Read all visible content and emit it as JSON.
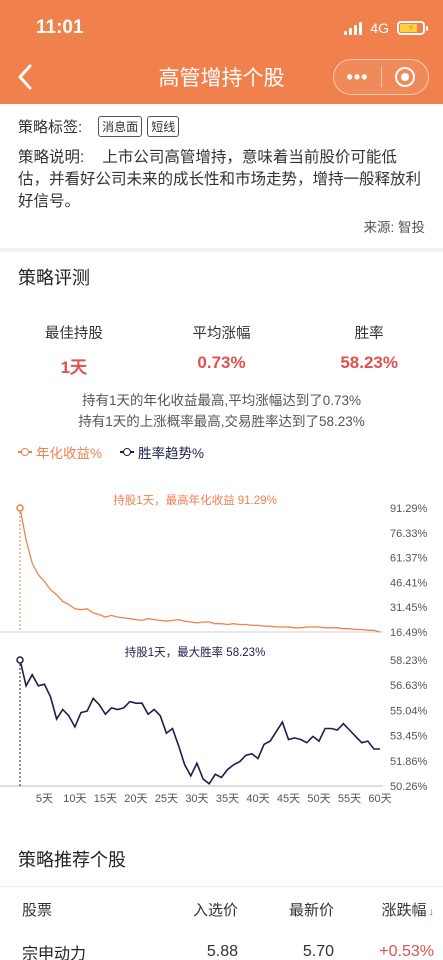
{
  "status": {
    "time": "11:01",
    "network": "4G"
  },
  "nav": {
    "back_icon": "chevron-left-icon",
    "title": "高管增持个股"
  },
  "strategy": {
    "tag_label": "策略标签:",
    "tags": [
      "消息面",
      "短线"
    ],
    "desc_label": "策略说明:",
    "description": "上市公司高管增持，意味着当前股价可能低估，并看好公司未来的成长性和市场走势，增持一般释放利好信号。",
    "source": "来源: 智投"
  },
  "evaluation": {
    "heading": "策略评测",
    "stats": [
      {
        "name": "最佳持股",
        "value": "1天"
      },
      {
        "name": "平均涨幅",
        "value": "0.73%"
      },
      {
        "name": "胜率",
        "value": "58.23%"
      }
    ],
    "summary_line1": "持有1天的年化收益最高,平均涨幅达到了0.73%",
    "summary_line2": "持有1天的上涨概率最高,交易胜率达到了58.23%",
    "legend": [
      {
        "label": "年化收益%",
        "color": "#f0814d"
      },
      {
        "label": "胜率趋势%",
        "color": "#1c1e4f"
      }
    ]
  },
  "chart_data": [
    {
      "type": "line",
      "title": "持股1天，最高年化收益 91.29%",
      "series": [
        {
          "name": "年化收益%",
          "color": "#f0814d"
        }
      ],
      "x": [
        1,
        2,
        3,
        4,
        5,
        6,
        7,
        8,
        9,
        10,
        11,
        12,
        13,
        14,
        15,
        16,
        17,
        18,
        19,
        20,
        21,
        22,
        23,
        24,
        25,
        26,
        27,
        28,
        29,
        30,
        31,
        32,
        33,
        34,
        35,
        36,
        37,
        38,
        39,
        40,
        41,
        42,
        43,
        44,
        45,
        46,
        47,
        48,
        49,
        50,
        51,
        52,
        53,
        54,
        55,
        56,
        57,
        58,
        59,
        60
      ],
      "y": [
        91.29,
        72,
        58,
        51,
        47,
        42,
        39,
        35,
        33,
        30.5,
        30,
        30.5,
        28,
        27,
        25.5,
        26.5,
        25.5,
        25,
        24.5,
        24,
        23.5,
        24.5,
        24,
        23.5,
        23,
        23.5,
        24,
        23,
        22.5,
        22,
        22.5,
        22.5,
        21.5,
        21.5,
        21,
        21.5,
        21,
        21,
        20.5,
        20.5,
        20,
        20,
        19.5,
        19.5,
        19.5,
        19,
        19,
        19.5,
        19.5,
        19.5,
        19,
        19,
        19,
        18.5,
        18.5,
        18,
        18,
        17.5,
        17.5,
        16.5
      ],
      "yticks": [
        "91.29%",
        "76.33%",
        "61.37%",
        "46.41%",
        "31.45%",
        "16.49%"
      ],
      "ylim": [
        16.49,
        91.29
      ]
    },
    {
      "type": "line",
      "title": "持股1天，最大胜率 58.23%",
      "series": [
        {
          "name": "胜率趋势%",
          "color": "#1c1e4f"
        }
      ],
      "x": [
        1,
        2,
        3,
        4,
        5,
        6,
        7,
        8,
        9,
        10,
        11,
        12,
        13,
        14,
        15,
        16,
        17,
        18,
        19,
        20,
        21,
        22,
        23,
        24,
        25,
        26,
        27,
        28,
        29,
        30,
        31,
        32,
        33,
        34,
        35,
        36,
        37,
        38,
        39,
        40,
        41,
        42,
        43,
        44,
        45,
        46,
        47,
        48,
        49,
        50,
        51,
        52,
        53,
        54,
        55,
        56,
        57,
        58,
        59,
        60
      ],
      "y": [
        58.23,
        56.6,
        57.3,
        56.6,
        56.7,
        55.9,
        54.5,
        55.1,
        54.7,
        54.0,
        54.9,
        55.0,
        55.8,
        55.4,
        54.8,
        55.2,
        55.1,
        55.2,
        55.6,
        55.5,
        55.5,
        54.8,
        55.1,
        54.7,
        53.6,
        53.9,
        52.8,
        51.6,
        50.9,
        51.7,
        50.7,
        50.4,
        51.0,
        50.8,
        51.3,
        51.6,
        51.8,
        52.2,
        52.3,
        52.0,
        52.9,
        53.1,
        53.7,
        54.3,
        53.2,
        53.3,
        53.2,
        53.0,
        53.4,
        53.1,
        53.9,
        53.9,
        53.8,
        54.2,
        53.8,
        53.4,
        53.0,
        53.1,
        52.6,
        52.6
      ],
      "yticks": [
        "58.23%",
        "56.63%",
        "55.04%",
        "53.45%",
        "51.86%",
        "50.26%"
      ],
      "ylim": [
        50.26,
        58.23
      ],
      "xticks": [
        "5天",
        "10天",
        "15天",
        "20天",
        "25天",
        "30天",
        "35天",
        "40天",
        "45天",
        "50天",
        "55天",
        "60天"
      ]
    }
  ],
  "recommend": {
    "heading": "策略推荐个股",
    "columns": [
      "股票",
      "入选价",
      "最新价",
      "涨跌幅"
    ],
    "rows": [
      {
        "name": "宗申动力",
        "entry": "5.88",
        "latest": "5.70",
        "change": "+0.53%"
      }
    ]
  }
}
